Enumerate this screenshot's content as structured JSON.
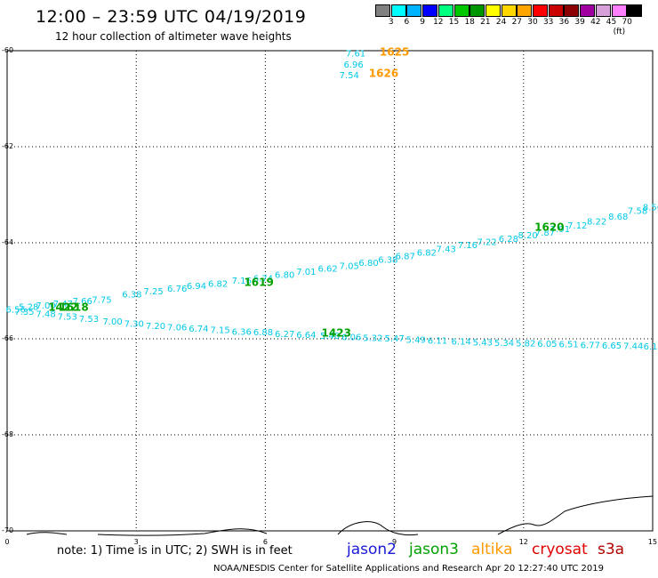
{
  "header": {
    "title": "12:00 – 23:59 UTC 04/19/2019",
    "subtitle": "12 hour collection of altimeter wave heights"
  },
  "legend_scale": {
    "labels": [
      "3",
      "6",
      "9",
      "12",
      "15",
      "18",
      "21",
      "24",
      "27",
      "30",
      "33",
      "36",
      "39",
      "42",
      "45",
      "70",
      "(ft)"
    ],
    "colors": [
      "#808080",
      "#00ffff",
      "#00b4ff",
      "#0000ff",
      "#00ff7f",
      "#00c800",
      "#009600",
      "#ffff00",
      "#ffd700",
      "#ffa500",
      "#ff0000",
      "#c80000",
      "#8b0000",
      "#a000a0",
      "#d8a0d8",
      "#ff80ff",
      "#000000"
    ]
  },
  "footer": {
    "note": "note: 1) Time is in UTC; 2) SWH is in feet",
    "satellites": [
      {
        "name": "jason2",
        "color": "#1a1ad6"
      },
      {
        "name": "jason3",
        "color": "#00a000"
      },
      {
        "name": "altika",
        "color": "#ff9900"
      },
      {
        "name": "cryosat",
        "color": "#e00000"
      },
      {
        "name": "s3a",
        "color": "#b00000"
      }
    ],
    "credit": "NOAA/NESDIS Center for Satellite Applications and Research    Apr 20 12:27:40 UTC 2019"
  },
  "chart_data": {
    "type": "scatter",
    "title": "12:00 – 23:59 UTC 04/19/2019",
    "subtitle": "12 hour collection of altimeter wave heights",
    "xlabel": "",
    "ylabel": "",
    "xlim": [
      0,
      15
    ],
    "ylim": [
      -70,
      -60
    ],
    "x_ticks": [
      "0",
      "3",
      "6",
      "9",
      "12",
      "15"
    ],
    "y_ticks": [
      "-60",
      "-62",
      "-64",
      "-66",
      "-68",
      "-70"
    ],
    "grid": true,
    "series": [
      {
        "name": "jason3",
        "color": "#00c8e6",
        "points": [
          {
            "x": 0.2,
            "y": -65.45,
            "label": "6.56"
          },
          {
            "x": 0.5,
            "y": -65.4,
            "label": "5.28"
          },
          {
            "x": 0.9,
            "y": -65.37,
            "label": "7.00"
          },
          {
            "x": 1.3,
            "y": -65.33,
            "label": "7.47"
          },
          {
            "x": 1.75,
            "y": -65.28,
            "label": "7.66"
          },
          {
            "x": 2.2,
            "y": -65.25,
            "label": "7.75"
          },
          {
            "x": 2.9,
            "y": -65.14,
            "label": "6.38"
          },
          {
            "x": 3.4,
            "y": -65.07,
            "label": "7.25"
          },
          {
            "x": 3.95,
            "y": -65.02,
            "label": "6.76"
          },
          {
            "x": 4.4,
            "y": -64.96,
            "label": "6.94"
          },
          {
            "x": 4.9,
            "y": -64.92,
            "label": "6.82"
          },
          {
            "x": 5.45,
            "y": -64.85,
            "label": "7.16"
          },
          {
            "x": 5.95,
            "y": -64.81,
            "label": "6.74"
          },
          {
            "x": 6.45,
            "y": -64.73,
            "label": "6.80"
          },
          {
            "x": 6.95,
            "y": -64.67,
            "label": "7.01"
          },
          {
            "x": 7.45,
            "y": -64.6,
            "label": "6.62"
          },
          {
            "x": 7.95,
            "y": -64.55,
            "label": "7.05"
          },
          {
            "x": 8.4,
            "y": -64.48,
            "label": "6.80"
          },
          {
            "x": 8.85,
            "y": -64.42,
            "label": "6.38"
          },
          {
            "x": 9.25,
            "y": -64.34,
            "label": "6.87"
          },
          {
            "x": 9.75,
            "y": -64.27,
            "label": "6.82"
          },
          {
            "x": 10.2,
            "y": -64.19,
            "label": "7.43"
          },
          {
            "x": 10.7,
            "y": -64.11,
            "label": "7.16"
          },
          {
            "x": 11.15,
            "y": -64.05,
            "label": "7.22"
          },
          {
            "x": 11.65,
            "y": -63.98,
            "label": "6.28"
          },
          {
            "x": 12.1,
            "y": -63.91,
            "label": "8.20"
          },
          {
            "x": 12.5,
            "y": -63.85,
            "label": "7.87"
          },
          {
            "x": 12.85,
            "y": -63.78,
            "label": "7.91"
          },
          {
            "x": 13.25,
            "y": -63.7,
            "label": "7.12"
          },
          {
            "x": 13.7,
            "y": -63.62,
            "label": "8.22"
          },
          {
            "x": 14.2,
            "y": -63.52,
            "label": "8.68"
          },
          {
            "x": 14.65,
            "y": -63.4,
            "label": "7.58"
          },
          {
            "x": 15.0,
            "y": -63.32,
            "label": "8.56"
          }
        ]
      },
      {
        "name": "jason3",
        "color": "#00c8e6",
        "points": [
          {
            "x": 0.4,
            "y": -65.5,
            "label": "7.35"
          },
          {
            "x": 0.9,
            "y": -65.55,
            "label": "7.48"
          },
          {
            "x": 1.4,
            "y": -65.6,
            "label": "7.53"
          },
          {
            "x": 1.9,
            "y": -65.65,
            "label": "7.53"
          },
          {
            "x": 2.45,
            "y": -65.7,
            "label": "7.00"
          },
          {
            "x": 2.95,
            "y": -65.75,
            "label": "7.30"
          },
          {
            "x": 3.45,
            "y": -65.8,
            "label": "7.20"
          },
          {
            "x": 3.95,
            "y": -65.82,
            "label": "7.06"
          },
          {
            "x": 4.45,
            "y": -65.85,
            "label": "6.74"
          },
          {
            "x": 4.95,
            "y": -65.88,
            "label": "7.15"
          },
          {
            "x": 5.45,
            "y": -65.92,
            "label": "6.36"
          },
          {
            "x": 5.95,
            "y": -65.93,
            "label": "6.88"
          },
          {
            "x": 6.45,
            "y": -65.96,
            "label": "6.27"
          },
          {
            "x": 6.95,
            "y": -65.98,
            "label": "6.64"
          },
          {
            "x": 7.5,
            "y": -66.0,
            "label": "5.48"
          },
          {
            "x": 8.0,
            "y": -66.03,
            "label": "6.06"
          },
          {
            "x": 8.5,
            "y": -66.05,
            "label": "5.32"
          },
          {
            "x": 9.0,
            "y": -66.06,
            "label": "5.47"
          },
          {
            "x": 9.5,
            "y": -66.08,
            "label": "5.49"
          },
          {
            "x": 10.0,
            "y": -66.1,
            "label": "6.11"
          },
          {
            "x": 10.55,
            "y": -66.12,
            "label": "6.14"
          },
          {
            "x": 11.05,
            "y": -66.14,
            "label": "5.43"
          },
          {
            "x": 11.55,
            "y": -66.15,
            "label": "5.34"
          },
          {
            "x": 12.05,
            "y": -66.16,
            "label": "5.82"
          },
          {
            "x": 12.55,
            "y": -66.17,
            "label": "6.05"
          },
          {
            "x": 13.05,
            "y": -66.18,
            "label": "6.51"
          },
          {
            "x": 13.55,
            "y": -66.19,
            "label": "6.77"
          },
          {
            "x": 14.05,
            "y": -66.2,
            "label": "6.65"
          },
          {
            "x": 14.55,
            "y": -66.21,
            "label": "7.44"
          },
          {
            "x": 14.95,
            "y": -66.22,
            "label": "6.1"
          }
        ]
      },
      {
        "name": "altika",
        "color": "#00c8e6",
        "points": [
          {
            "x": 8.1,
            "y": -60.12,
            "label": "7.61"
          },
          {
            "x": 8.05,
            "y": -60.35,
            "label": "6.96"
          },
          {
            "x": 7.95,
            "y": -60.57,
            "label": "7.54"
          }
        ]
      }
    ],
    "time_markers": [
      {
        "x": 9.0,
        "y": -60.1,
        "label": "1625",
        "color": "#ff9900"
      },
      {
        "x": 8.75,
        "y": -60.55,
        "label": "1626",
        "color": "#ff9900"
      },
      {
        "x": 1.3,
        "y": -65.42,
        "label": "1422",
        "color": "#00a000"
      },
      {
        "x": 1.55,
        "y": -65.42,
        "label": "1618",
        "color": "#00a000"
      },
      {
        "x": 5.85,
        "y": -64.9,
        "label": "1619",
        "color": "#00a000"
      },
      {
        "x": 7.65,
        "y": -65.95,
        "label": "1423",
        "color": "#00a000"
      },
      {
        "x": 12.6,
        "y": -63.75,
        "label": "1620",
        "color": "#00a000"
      }
    ]
  }
}
